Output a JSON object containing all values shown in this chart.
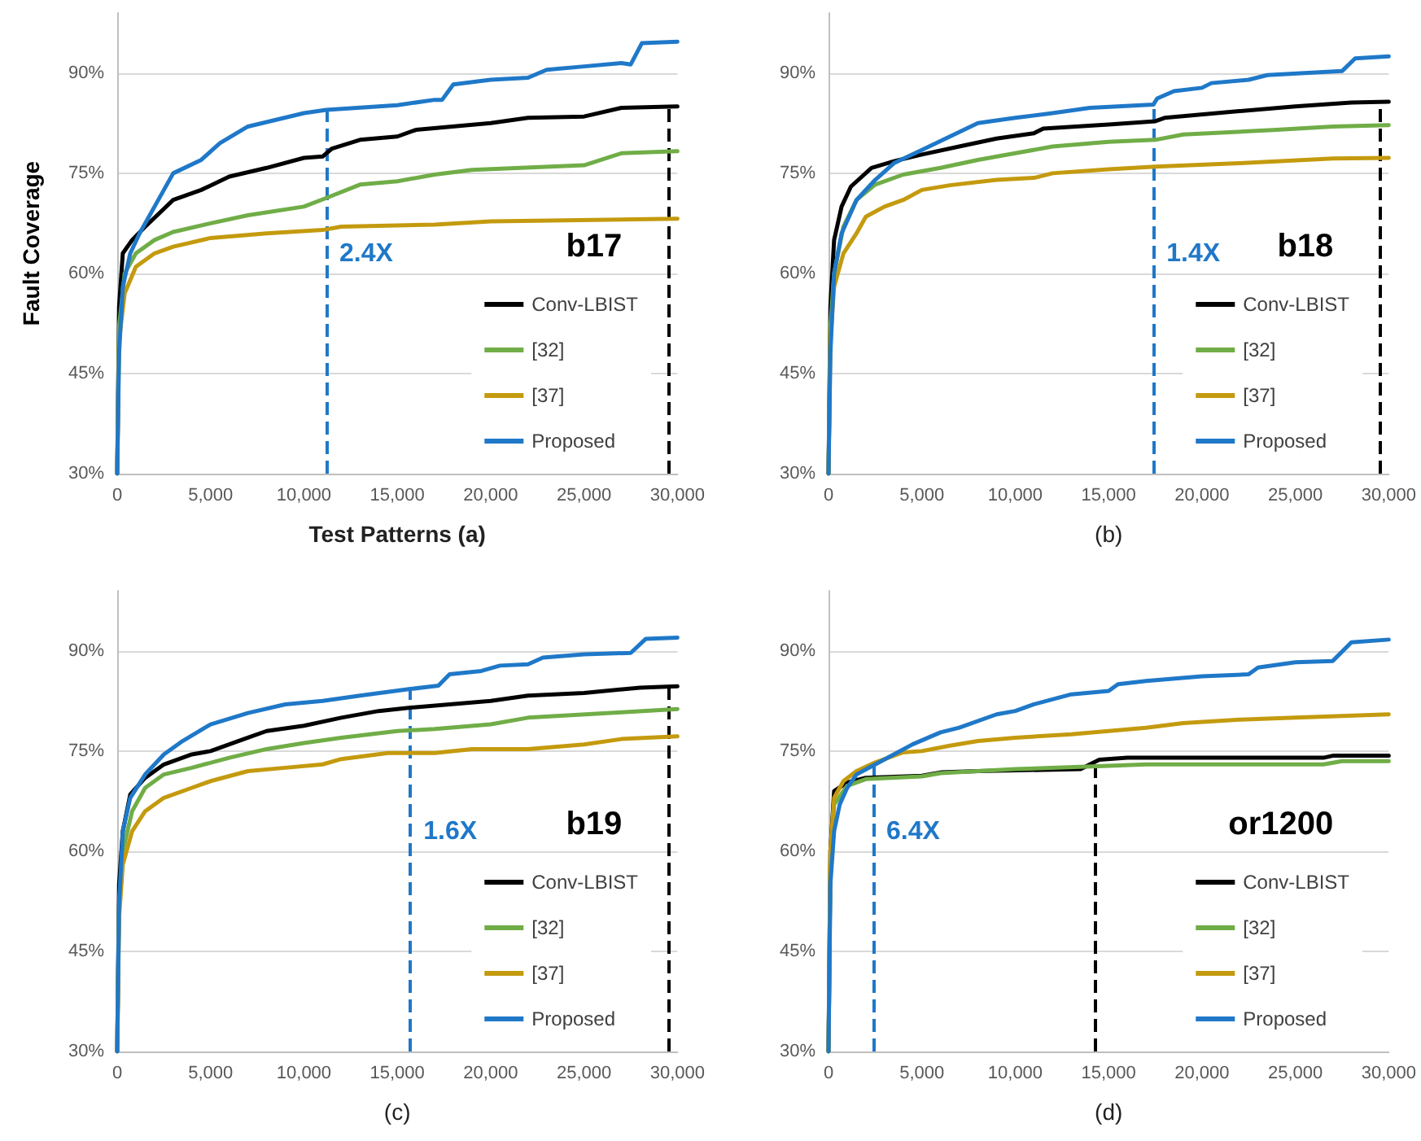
{
  "chart_data": [
    {
      "type": "line",
      "ylabel": "Fault Coverage",
      "xlabel": "Test Patterns (a)",
      "annotations": [
        "b17"
      ],
      "xlim": [
        0,
        30000
      ],
      "ylim": [
        30,
        99
      ],
      "xticks": [
        {
          "value": 0,
          "label": "0"
        },
        {
          "value": 5000,
          "label": "5,000"
        },
        {
          "value": 10000,
          "label": "10,000"
        },
        {
          "value": 15000,
          "label": "15,000"
        },
        {
          "value": 20000,
          "label": "20,000"
        },
        {
          "value": 25000,
          "label": "25,000"
        },
        {
          "value": 30000,
          "label": "30,000"
        }
      ],
      "yticks": [
        {
          "value": 30,
          "label": "30%"
        },
        {
          "value": 45,
          "label": "45%"
        },
        {
          "value": 60,
          "label": "60%"
        },
        {
          "value": 75,
          "label": "75%"
        },
        {
          "value": 90,
          "label": "90%"
        }
      ],
      "grid": "y",
      "legend": "bottom right",
      "marker": "none",
      "line_style": "solid",
      "ref_lines": [
        {
          "axis": "x",
          "value": 11200,
          "label": "2.4X",
          "color": "#1f78c8",
          "line_style": "dashed"
        },
        {
          "axis": "x",
          "value": 29500,
          "label": null,
          "color": "#000000",
          "line_style": "dashed"
        }
      ],
      "series": [
        {
          "name": "Conv-LBIST",
          "color": "#000000",
          "x": [
            0,
            100,
            300,
            800,
            1500,
            3000,
            4500,
            6000,
            8000,
            10000,
            11000,
            11500,
            13000,
            15000,
            16000,
            20000,
            22000,
            25000,
            27000,
            30000
          ],
          "values": [
            30,
            55,
            63,
            65,
            67,
            71,
            72.5,
            74.5,
            75.8,
            77.3,
            77.5,
            78.7,
            80,
            80.5,
            81.5,
            82.5,
            83.3,
            83.5,
            84.8,
            85
          ]
        },
        {
          "name": "[32]",
          "color": "#70ad47",
          "x": [
            0,
            100,
            400,
            1000,
            2000,
            3000,
            5000,
            7000,
            10000,
            11200,
            13000,
            15000,
            17000,
            19000,
            25000,
            27000,
            30000
          ],
          "values": [
            30,
            52,
            60,
            63,
            65,
            66.2,
            67.5,
            68.7,
            70,
            71.3,
            73.3,
            73.8,
            74.8,
            75.5,
            76.2,
            78,
            78.3
          ]
        },
        {
          "name": "[37]",
          "color": "#c49a0e",
          "x": [
            0,
            100,
            400,
            1000,
            2000,
            3000,
            5000,
            8000,
            11000,
            12000,
            17000,
            20000,
            30000
          ],
          "values": [
            30,
            50,
            57,
            61,
            63,
            64,
            65.3,
            66,
            66.5,
            67,
            67.3,
            67.8,
            68.2
          ]
        },
        {
          "name": "Proposed",
          "color": "#1f78c8",
          "x": [
            0,
            100,
            300,
            700,
            1200,
            2000,
            3000,
            4500,
            5500,
            7000,
            8500,
            10000,
            11200,
            15000,
            17000,
            17400,
            18000,
            20000,
            22000,
            23000,
            25000,
            27000,
            27500,
            28100,
            30000
          ],
          "values": [
            30,
            48,
            58,
            63,
            66,
            70,
            75,
            77,
            79.5,
            82,
            83,
            84,
            84.5,
            85.2,
            86,
            86,
            88.3,
            89,
            89.3,
            90.5,
            91,
            91.5,
            91.3,
            94.5,
            94.7
          ]
        }
      ]
    },
    {
      "type": "line",
      "xlabel": "(b)",
      "annotations": [
        "b18"
      ],
      "xlim": [
        0,
        30000
      ],
      "ylim": [
        30,
        99
      ],
      "xticks": [
        {
          "value": 0,
          "label": "0"
        },
        {
          "value": 5000,
          "label": "5,000"
        },
        {
          "value": 10000,
          "label": "10,000"
        },
        {
          "value": 15000,
          "label": "15,000"
        },
        {
          "value": 20000,
          "label": "20,000"
        },
        {
          "value": 25000,
          "label": "25,000"
        },
        {
          "value": 30000,
          "label": "30,000"
        }
      ],
      "yticks": [
        {
          "value": 30,
          "label": "30%"
        },
        {
          "value": 45,
          "label": "45%"
        },
        {
          "value": 60,
          "label": "60%"
        },
        {
          "value": 75,
          "label": "75%"
        },
        {
          "value": 90,
          "label": "90%"
        }
      ],
      "grid": "y",
      "legend": "bottom right",
      "marker": "none",
      "line_style": "solid",
      "ref_lines": [
        {
          "axis": "x",
          "value": 17400,
          "label": "1.4X",
          "color": "#1f78c8",
          "line_style": "dashed"
        },
        {
          "axis": "x",
          "value": 29500,
          "label": null,
          "color": "#000000",
          "line_style": "dashed"
        }
      ],
      "series": [
        {
          "name": "Conv-LBIST",
          "color": "#000000",
          "x": [
            0,
            100,
            300,
            700,
            1200,
            2300,
            3500,
            5000,
            7000,
            9000,
            11000,
            11500,
            15000,
            17500,
            18000,
            22000,
            25000,
            28000,
            30000
          ],
          "values": [
            30,
            55,
            65,
            70,
            73,
            75.8,
            76.8,
            77.8,
            79,
            80.2,
            81,
            81.7,
            82.3,
            82.8,
            83.3,
            84.3,
            85,
            85.6,
            85.7
          ]
        },
        {
          "name": "[32]",
          "color": "#70ad47",
          "x": [
            0,
            100,
            300,
            800,
            1500,
            2500,
            4000,
            6000,
            8000,
            10000,
            12000,
            15000,
            17500,
            19000,
            24000,
            27000,
            30000
          ],
          "values": [
            30,
            52,
            60,
            67,
            71,
            73.3,
            74.8,
            75.8,
            77,
            78,
            79,
            79.7,
            80,
            80.8,
            81.5,
            82,
            82.2
          ]
        },
        {
          "name": "[37]",
          "color": "#c49a0e",
          "x": [
            0,
            100,
            300,
            800,
            1500,
            2000,
            3000,
            4000,
            5000,
            6500,
            9000,
            11000,
            12000,
            15000,
            17500,
            22000,
            27000,
            30000
          ],
          "values": [
            30,
            50,
            58,
            63,
            66,
            68.5,
            70,
            71,
            72.5,
            73.2,
            74,
            74.3,
            75,
            75.6,
            76,
            76.5,
            77.2,
            77.3
          ]
        },
        {
          "name": "Proposed",
          "color": "#1f78c8",
          "x": [
            0,
            100,
            300,
            700,
            1500,
            2500,
            3500,
            5000,
            6500,
            8000,
            10000,
            12000,
            14000,
            17400,
            17600,
            18500,
            20000,
            20500,
            22500,
            23500,
            27500,
            28200,
            30000
          ],
          "values": [
            30,
            48,
            60,
            66,
            71,
            74,
            76.5,
            78.5,
            80.5,
            82.5,
            83.3,
            84,
            84.8,
            85.3,
            86.2,
            87.3,
            87.8,
            88.5,
            89,
            89.7,
            90.3,
            92.2,
            92.5
          ]
        }
      ]
    },
    {
      "type": "line",
      "xlabel": "(c)",
      "annotations": [
        "b19"
      ],
      "xlim": [
        0,
        30000
      ],
      "ylim": [
        30,
        99
      ],
      "xticks": [
        {
          "value": 0,
          "label": "0"
        },
        {
          "value": 5000,
          "label": "5,000"
        },
        {
          "value": 10000,
          "label": "10,000"
        },
        {
          "value": 15000,
          "label": "15,000"
        },
        {
          "value": 20000,
          "label": "20,000"
        },
        {
          "value": 25000,
          "label": "25,000"
        },
        {
          "value": 30000,
          "label": "30,000"
        }
      ],
      "yticks": [
        {
          "value": 30,
          "label": "30%"
        },
        {
          "value": 45,
          "label": "45%"
        },
        {
          "value": 60,
          "label": "60%"
        },
        {
          "value": 75,
          "label": "75%"
        },
        {
          "value": 90,
          "label": "90%"
        }
      ],
      "grid": "y",
      "legend": "bottom right",
      "marker": "none",
      "line_style": "solid",
      "ref_lines": [
        {
          "axis": "x",
          "value": 15700,
          "label": "1.6X",
          "color": "#1f78c8",
          "line_style": "dashed"
        },
        {
          "axis": "x",
          "value": 29500,
          "label": null,
          "color": "#000000",
          "line_style": "dashed"
        }
      ],
      "series": [
        {
          "name": "Conv-LBIST",
          "color": "#000000",
          "x": [
            0,
            100,
            300,
            700,
            1500,
            2500,
            4000,
            5000,
            7000,
            8000,
            10000,
            12000,
            14000,
            15700,
            20000,
            22000,
            25000,
            28000,
            30000
          ],
          "values": [
            30,
            55,
            63,
            68.5,
            71,
            73,
            74.5,
            75,
            77,
            78,
            78.8,
            80,
            81,
            81.5,
            82.5,
            83.3,
            83.7,
            84.5,
            84.7
          ]
        },
        {
          "name": "[32]",
          "color": "#70ad47",
          "x": [
            0,
            100,
            300,
            800,
            1500,
            2500,
            4000,
            6000,
            8000,
            10000,
            12000,
            15000,
            17000,
            20000,
            22000,
            27000,
            30000
          ],
          "values": [
            30,
            52,
            60,
            66,
            69.5,
            71.5,
            72.5,
            74,
            75.3,
            76.2,
            77,
            78,
            78.3,
            79,
            80,
            80.8,
            81.3
          ]
        },
        {
          "name": "[37]",
          "color": "#c49a0e",
          "x": [
            0,
            100,
            300,
            800,
            1500,
            2500,
            4000,
            5000,
            7000,
            9000,
            11000,
            12000,
            14500,
            17000,
            19000,
            22000,
            25000,
            27000,
            30000
          ],
          "values": [
            30,
            50,
            58,
            63,
            66,
            68,
            69.5,
            70.5,
            72,
            72.5,
            73,
            73.8,
            74.7,
            74.7,
            75.3,
            75.3,
            76,
            76.8,
            77.2
          ]
        },
        {
          "name": "Proposed",
          "color": "#1f78c8",
          "x": [
            0,
            100,
            300,
            700,
            1500,
            2500,
            3500,
            5000,
            7000,
            9000,
            11000,
            13000,
            15700,
            17200,
            17800,
            19500,
            20500,
            22000,
            22800,
            25000,
            27500,
            28300,
            30000
          ],
          "values": [
            30,
            52,
            63,
            68,
            71.5,
            74.5,
            76.5,
            79,
            80.7,
            82,
            82.5,
            83.3,
            84.3,
            84.8,
            86.5,
            87,
            87.8,
            88,
            89,
            89.5,
            89.7,
            91.8,
            92
          ]
        }
      ]
    },
    {
      "type": "line",
      "xlabel": "(d)",
      "annotations": [
        "or1200"
      ],
      "xlim": [
        0,
        30000
      ],
      "ylim": [
        30,
        99
      ],
      "xticks": [
        {
          "value": 0,
          "label": "0"
        },
        {
          "value": 5000,
          "label": "5,000"
        },
        {
          "value": 10000,
          "label": "10,000"
        },
        {
          "value": 15000,
          "label": "15,000"
        },
        {
          "value": 20000,
          "label": "20,000"
        },
        {
          "value": 25000,
          "label": "25,000"
        },
        {
          "value": 30000,
          "label": "30,000"
        }
      ],
      "yticks": [
        {
          "value": 30,
          "label": "30%"
        },
        {
          "value": 45,
          "label": "45%"
        },
        {
          "value": 60,
          "label": "60%"
        },
        {
          "value": 75,
          "label": "75%"
        },
        {
          "value": 90,
          "label": "90%"
        }
      ],
      "grid": "y",
      "legend": "bottom right",
      "marker": "none",
      "line_style": "solid",
      "ref_lines": [
        {
          "axis": "x",
          "value": 2400,
          "label": "6.4X",
          "color": "#1f78c8",
          "line_style": "dashed"
        },
        {
          "axis": "x",
          "value": 14300,
          "label": null,
          "color": "#000000",
          "line_style": "dashed"
        }
      ],
      "series": [
        {
          "name": "Conv-LBIST",
          "color": "#000000",
          "x": [
            0,
            100,
            300,
            1000,
            2000,
            5000,
            6000,
            8000,
            13500,
            14500,
            16000,
            26500,
            27000,
            30000
          ],
          "values": [
            30,
            60,
            69,
            70.3,
            71,
            71.3,
            71.8,
            72,
            72.3,
            73.7,
            74,
            74,
            74.3,
            74.3
          ]
        },
        {
          "name": "[32]",
          "color": "#70ad47",
          "x": [
            0,
            100,
            300,
            1000,
            2000,
            5000,
            6000,
            10000,
            15000,
            17000,
            26500,
            27500,
            30000
          ],
          "values": [
            30,
            58,
            67,
            69.8,
            70.8,
            71.2,
            71.7,
            72.3,
            72.8,
            73,
            73,
            73.5,
            73.5
          ]
        },
        {
          "name": "[37]",
          "color": "#c49a0e",
          "x": [
            0,
            100,
            300,
            800,
            1500,
            2500,
            4000,
            5000,
            6500,
            8000,
            10000,
            13000,
            15000,
            17000,
            19000,
            22000,
            25000,
            30000
          ],
          "values": [
            30,
            60,
            68,
            70.5,
            72,
            73.3,
            74.8,
            75,
            75.8,
            76.5,
            77,
            77.5,
            78,
            78.5,
            79.2,
            79.7,
            80,
            80.5
          ]
        },
        {
          "name": "Proposed",
          "color": "#1f78c8",
          "x": [
            0,
            100,
            300,
            600,
            1000,
            1500,
            2500,
            3500,
            4500,
            6000,
            7000,
            9000,
            10000,
            11000,
            13000,
            15000,
            15500,
            17000,
            20000,
            22500,
            23000,
            25000,
            27000,
            28000,
            30000
          ],
          "values": [
            30,
            55,
            63,
            67,
            69.5,
            71.5,
            73,
            74.5,
            76,
            77.8,
            78.5,
            80.5,
            81,
            82,
            83.5,
            84,
            85,
            85.5,
            86.2,
            86.5,
            87.5,
            88.3,
            88.5,
            91.3,
            91.7
          ]
        }
      ]
    }
  ]
}
